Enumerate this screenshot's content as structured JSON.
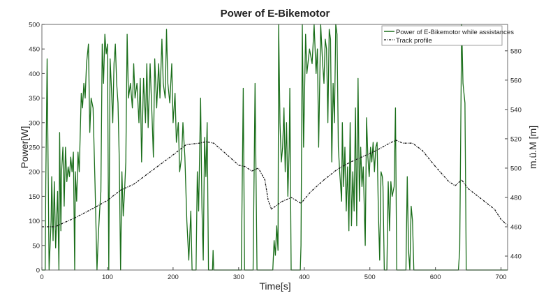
{
  "chart_data": {
    "type": "line",
    "title": "Power of E-Bikemotor",
    "xlabel": "Time[s]",
    "ylabel": "Power[W]",
    "y2label": "m.ü.M [m]",
    "xlim": [
      0,
      710
    ],
    "ylim": [
      0,
      500
    ],
    "y2lim": [
      430.5,
      598
    ],
    "xticks": [
      0,
      100,
      200,
      300,
      400,
      500,
      600,
      700
    ],
    "yticks": [
      0,
      50,
      100,
      150,
      200,
      250,
      300,
      350,
      400,
      450,
      500
    ],
    "y2ticks": [
      440,
      460,
      480,
      500,
      520,
      540,
      560,
      580
    ],
    "grid": false,
    "legend_position": "top-right",
    "series": [
      {
        "name": "Power of E-Bikemotor while assistances",
        "axis": "left",
        "color": "#1a6e1a",
        "style": "solid",
        "points": [
          [
            0,
            0
          ],
          [
            5,
            0
          ],
          [
            6,
            180
          ],
          [
            8,
            430
          ],
          [
            11,
            0
          ],
          [
            14,
            100
          ],
          [
            15,
            190
          ],
          [
            17,
            60
          ],
          [
            19,
            180
          ],
          [
            21,
            45
          ],
          [
            24,
            160
          ],
          [
            26,
            0
          ],
          [
            27,
            280
          ],
          [
            29,
            80
          ],
          [
            30,
            200
          ],
          [
            32,
            250
          ],
          [
            34,
            130
          ],
          [
            36,
            250
          ],
          [
            38,
            180
          ],
          [
            40,
            210
          ],
          [
            42,
            190
          ],
          [
            44,
            230
          ],
          [
            46,
            200
          ],
          [
            48,
            240
          ],
          [
            50,
            0
          ],
          [
            51,
            200
          ],
          [
            53,
            140
          ],
          [
            55,
            240
          ],
          [
            57,
            200
          ],
          [
            60,
            360
          ],
          [
            62,
            330
          ],
          [
            64,
            380
          ],
          [
            66,
            350
          ],
          [
            68,
            420
          ],
          [
            71,
            460
          ],
          [
            73,
            280
          ],
          [
            75,
            350
          ],
          [
            78,
            330
          ],
          [
            81,
            175
          ],
          [
            84,
            0
          ],
          [
            86,
            70
          ],
          [
            88,
            120
          ],
          [
            90,
            160
          ],
          [
            92,
            460
          ],
          [
            94,
            380
          ],
          [
            96,
            480
          ],
          [
            98,
            440
          ],
          [
            100,
            460
          ],
          [
            102,
            0
          ],
          [
            104,
            430
          ],
          [
            106,
            370
          ],
          [
            108,
            300
          ],
          [
            110,
            420
          ],
          [
            112,
            460
          ],
          [
            114,
            380
          ],
          [
            116,
            340
          ],
          [
            118,
            220
          ],
          [
            120,
            0
          ],
          [
            122,
            200
          ],
          [
            124,
            110
          ],
          [
            126,
            160
          ],
          [
            128,
            220
          ],
          [
            130,
            480
          ],
          [
            132,
            350
          ],
          [
            135,
            380
          ],
          [
            138,
            330
          ],
          [
            140,
            420
          ],
          [
            142,
            350
          ],
          [
            145,
            380
          ],
          [
            148,
            300
          ],
          [
            150,
            390
          ],
          [
            152,
            220
          ],
          [
            155,
            390
          ],
          [
            158,
            300
          ],
          [
            160,
            420
          ],
          [
            162,
            290
          ],
          [
            165,
            420
          ],
          [
            168,
            310
          ],
          [
            170,
            230
          ],
          [
            172,
            430
          ],
          [
            175,
            330
          ],
          [
            178,
            420
          ],
          [
            180,
            350
          ],
          [
            183,
            470
          ],
          [
            185,
            380
          ],
          [
            188,
            350
          ],
          [
            190,
            490
          ],
          [
            192,
            380
          ],
          [
            195,
            340
          ],
          [
            198,
            420
          ],
          [
            200,
            300
          ],
          [
            203,
            360
          ],
          [
            205,
            260
          ],
          [
            208,
            300
          ],
          [
            210,
            200
          ],
          [
            213,
            230
          ],
          [
            215,
            300
          ],
          [
            218,
            230
          ],
          [
            221,
            100
          ],
          [
            224,
            20
          ],
          [
            227,
            120
          ],
          [
            229,
            0
          ],
          [
            235,
            0
          ],
          [
            237,
            200
          ],
          [
            239,
            120
          ],
          [
            242,
            350
          ],
          [
            244,
            130
          ],
          [
            246,
            20
          ],
          [
            248,
            270
          ],
          [
            250,
            190
          ],
          [
            252,
            300
          ],
          [
            254,
            0
          ],
          [
            260,
            0
          ],
          [
            261,
            40
          ],
          [
            262,
            0
          ],
          [
            304,
            0
          ],
          [
            307,
            370
          ],
          [
            309,
            0
          ],
          [
            322,
            0
          ],
          [
            325,
            380
          ],
          [
            328,
            0
          ],
          [
            352,
            0
          ],
          [
            354,
            60
          ],
          [
            356,
            30
          ],
          [
            358,
            90
          ],
          [
            360,
            40
          ],
          [
            361,
            500
          ],
          [
            363,
            300
          ],
          [
            365,
            220
          ],
          [
            367,
            250
          ],
          [
            369,
            330
          ],
          [
            371,
            200
          ],
          [
            373,
            300
          ],
          [
            375,
            150
          ],
          [
            377,
            250
          ],
          [
            378,
            370
          ],
          [
            380,
            0
          ],
          [
            394,
            0
          ],
          [
            395,
            50
          ],
          [
            397,
            500
          ],
          [
            399,
            250
          ],
          [
            402,
            480
          ],
          [
            404,
            400
          ],
          [
            408,
            450
          ],
          [
            412,
            420
          ],
          [
            415,
            500
          ],
          [
            418,
            400
          ],
          [
            420,
            450
          ],
          [
            422,
            250
          ],
          [
            425,
            500
          ],
          [
            428,
            420
          ],
          [
            430,
            380
          ],
          [
            432,
            470
          ],
          [
            434,
            450
          ],
          [
            436,
            300
          ],
          [
            438,
            490
          ],
          [
            440,
            470
          ],
          [
            442,
            220
          ],
          [
            444,
            380
          ],
          [
            446,
            300
          ],
          [
            448,
            500
          ],
          [
            450,
            480
          ],
          [
            452,
            250
          ],
          [
            454,
            200
          ],
          [
            457,
            140
          ],
          [
            458,
            300
          ],
          [
            460,
            170
          ],
          [
            462,
            250
          ],
          [
            464,
            120
          ],
          [
            466,
            210
          ],
          [
            468,
            80
          ],
          [
            470,
            300
          ],
          [
            472,
            90
          ],
          [
            474,
            200
          ],
          [
            476,
            120
          ],
          [
            478,
            330
          ],
          [
            480,
            90
          ],
          [
            482,
            390
          ],
          [
            484,
            140
          ],
          [
            486,
            250
          ],
          [
            488,
            170
          ],
          [
            490,
            210
          ],
          [
            493,
            50
          ],
          [
            495,
            310
          ],
          [
            497,
            230
          ],
          [
            499,
            190
          ],
          [
            501,
            250
          ],
          [
            503,
            220
          ],
          [
            505,
            260
          ],
          [
            507,
            200
          ],
          [
            509,
            250
          ],
          [
            511,
            260
          ],
          [
            513,
            120
          ],
          [
            515,
            20
          ],
          [
            517,
            200
          ],
          [
            519,
            190
          ],
          [
            520,
            170
          ],
          [
            522,
            0
          ],
          [
            526,
            0
          ],
          [
            528,
            180
          ],
          [
            530,
            80
          ],
          [
            532,
            180
          ],
          [
            534,
            150
          ],
          [
            537,
            170
          ],
          [
            539,
            330
          ],
          [
            541,
            0
          ],
          [
            555,
            0
          ],
          [
            557,
            190
          ],
          [
            559,
            40
          ],
          [
            561,
            0
          ],
          [
            563,
            130
          ],
          [
            565,
            100
          ],
          [
            567,
            0
          ],
          [
            635,
            0
          ],
          [
            637,
            40
          ],
          [
            640,
            500
          ],
          [
            642,
            380
          ],
          [
            645,
            340
          ],
          [
            647,
            0
          ],
          [
            710,
            0
          ]
        ]
      },
      {
        "name": "Track profile",
        "axis": "right",
        "color": "#111111",
        "style": "dash-dot",
        "points": [
          [
            0,
            460
          ],
          [
            20,
            460
          ],
          [
            50,
            466
          ],
          [
            80,
            473
          ],
          [
            100,
            478
          ],
          [
            120,
            485
          ],
          [
            140,
            489
          ],
          [
            170,
            499
          ],
          [
            200,
            509
          ],
          [
            220,
            516
          ],
          [
            240,
            517
          ],
          [
            250,
            518
          ],
          [
            262,
            517
          ],
          [
            280,
            510
          ],
          [
            300,
            502
          ],
          [
            310,
            501
          ],
          [
            320,
            498
          ],
          [
            330,
            500
          ],
          [
            340,
            492
          ],
          [
            345,
            478
          ],
          [
            350,
            472
          ],
          [
            365,
            477
          ],
          [
            380,
            480
          ],
          [
            395,
            476
          ],
          [
            410,
            484
          ],
          [
            430,
            492
          ],
          [
            450,
            499
          ],
          [
            470,
            504
          ],
          [
            490,
            508
          ],
          [
            510,
            512
          ],
          [
            530,
            517
          ],
          [
            540,
            519
          ],
          [
            550,
            517
          ],
          [
            565,
            517
          ],
          [
            580,
            512
          ],
          [
            600,
            501
          ],
          [
            620,
            491
          ],
          [
            630,
            488
          ],
          [
            640,
            492
          ],
          [
            650,
            486
          ],
          [
            670,
            479
          ],
          [
            690,
            472
          ],
          [
            700,
            465
          ],
          [
            710,
            461
          ]
        ]
      }
    ]
  }
}
